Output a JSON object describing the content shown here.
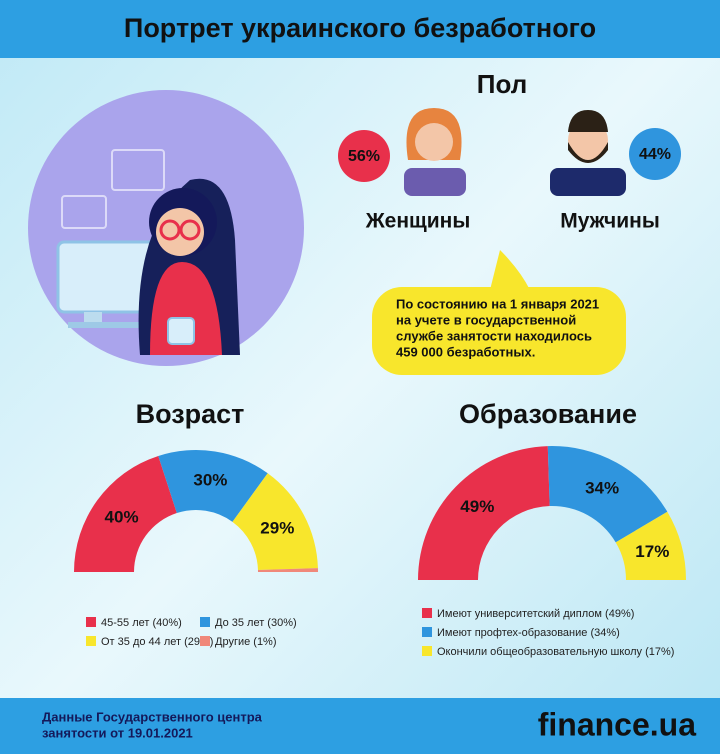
{
  "header": {
    "title": "Портрет украинского безработного"
  },
  "gender": {
    "title": "Пол",
    "women": {
      "label": "Женщины",
      "percent": "56%"
    },
    "men": {
      "label": "Мужчины",
      "percent": "44%"
    }
  },
  "note": {
    "lines": [
      "По состоянию на 1 января 2021",
      "на учете в государственной",
      "службе занятости находилось",
      "459 000 безработных."
    ]
  },
  "chart_data": [
    {
      "type": "pie",
      "title": "Возраст",
      "categories": [
        "45-55 лет (40%)",
        "До 35 лет (30%)",
        "От 35 до 44 лет (29%)",
        "Другие (1%)"
      ],
      "values": [
        40,
        30,
        29,
        1
      ],
      "value_labels": [
        "40%",
        "30%",
        "29%",
        null
      ],
      "colors": [
        "#e8304b",
        "#2f95de",
        "#f8e62c",
        "#f0887a"
      ]
    },
    {
      "type": "pie",
      "title": "Образование",
      "categories": [
        "Имеют университетский диплом (49%)",
        "Имеют профтех-образование (34%)",
        "Окончили общеобразовательную школу (17%)"
      ],
      "values": [
        49,
        34,
        17
      ],
      "value_labels": [
        "49%",
        "34%",
        "17%"
      ],
      "colors": [
        "#e8304b",
        "#2f95de",
        "#f8e62c"
      ]
    }
  ],
  "footer": {
    "source_lines": [
      "Данные Государственного центра",
      "занятости от 19.01.2021"
    ],
    "logo": "finance.ua"
  }
}
